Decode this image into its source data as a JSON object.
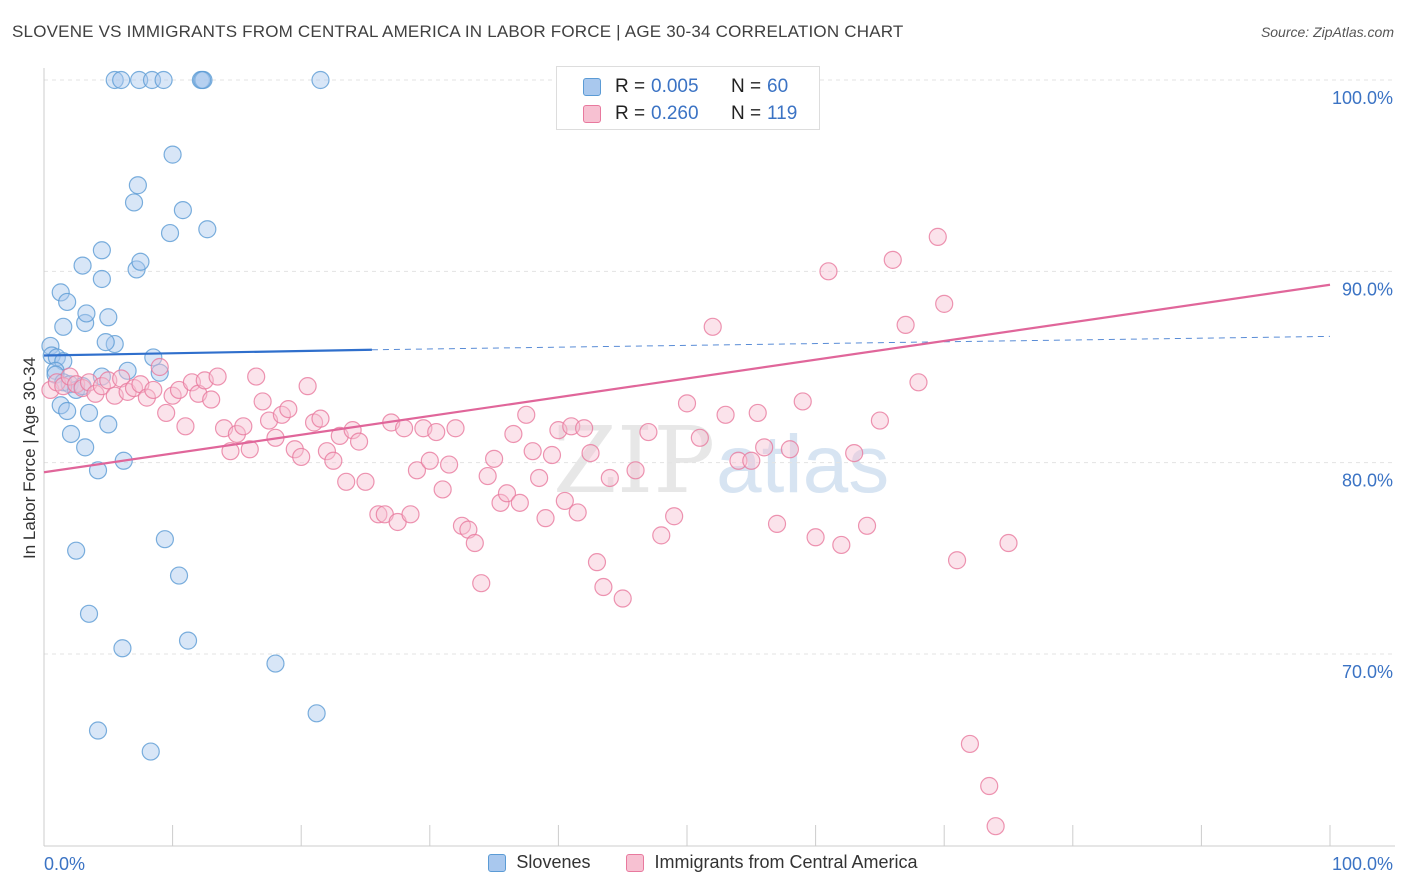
{
  "title": "SLOVENE VS IMMIGRANTS FROM CENTRAL AMERICA IN LABOR FORCE | AGE 30-34 CORRELATION CHART",
  "source": "Source: ZipAtlas.com",
  "watermark": "ZIPatlas",
  "colors": {
    "blue": "#5b9bd5",
    "blue_fill": "#a9c8ee",
    "blue_line": "#2f6fcc",
    "pink": "#e8799e",
    "pink_fill": "#f7c1d2",
    "pink_line": "#e0669a",
    "axis_label": "#3b73c4"
  },
  "legend_box": [
    {
      "r_label": "R =",
      "r_value": "0.005",
      "n_label": "N =",
      "n_value": "60",
      "color": "#a9c8ee"
    },
    {
      "r_label": "R =",
      "r_value": "0.260",
      "n_label": "N =",
      "n_value": "119",
      "color": "#f7c1d2"
    }
  ],
  "legend_bottom": [
    {
      "label": "Slovenes",
      "color": "#a9c8ee"
    },
    {
      "label": "Immigrants from Central America",
      "color": "#f7c1d2"
    }
  ],
  "chart_data": {
    "type": "scatter",
    "xlabel": "",
    "ylabel": "In Labor Force | Age 30-34",
    "xlim": [
      0,
      100
    ],
    "ylim": [
      60,
      100
    ],
    "x_tick_labels": [
      "0.0%",
      "100.0%"
    ],
    "y_ticks": [
      70,
      80,
      90,
      100
    ],
    "y_tick_labels": [
      "70.0%",
      "80.0%",
      "90.0%",
      "100.0%"
    ],
    "grid": "horizontal dashed",
    "series": [
      {
        "name": "Slovenes",
        "color": "#5b9bd5",
        "trend": {
          "x0": 0,
          "y0": 85.6,
          "x1": 25.5,
          "y1": 85.9,
          "x_dash_end": 100,
          "y_dash_end": 86.6
        },
        "points": [
          [
            0.5,
            86.1
          ],
          [
            0.6,
            85.6
          ],
          [
            1.0,
            85.5
          ],
          [
            1.5,
            85.3
          ],
          [
            0.9,
            84.8
          ],
          [
            0.9,
            84.6
          ],
          [
            1.5,
            84.2
          ],
          [
            2.0,
            84.1
          ],
          [
            2.5,
            83.8
          ],
          [
            3.0,
            84.0
          ],
          [
            1.3,
            83.0
          ],
          [
            1.8,
            82.7
          ],
          [
            3.5,
            82.6
          ],
          [
            2.1,
            81.5
          ],
          [
            3.2,
            80.8
          ],
          [
            4.2,
            79.6
          ],
          [
            6.2,
            80.1
          ],
          [
            5.0,
            82.0
          ],
          [
            4.5,
            84.5
          ],
          [
            6.5,
            84.8
          ],
          [
            8.5,
            85.5
          ],
          [
            9.0,
            84.7
          ],
          [
            1.5,
            87.1
          ],
          [
            1.3,
            88.9
          ],
          [
            1.8,
            88.4
          ],
          [
            3.2,
            87.3
          ],
          [
            3.3,
            87.8
          ],
          [
            5.0,
            87.6
          ],
          [
            5.5,
            86.2
          ],
          [
            4.8,
            86.3
          ],
          [
            3.0,
            90.3
          ],
          [
            4.5,
            89.6
          ],
          [
            4.5,
            91.1
          ],
          [
            7.2,
            90.1
          ],
          [
            7.5,
            90.5
          ],
          [
            7.0,
            93.6
          ],
          [
            7.3,
            94.5
          ],
          [
            9.8,
            92.0
          ],
          [
            10.8,
            93.2
          ],
          [
            12.7,
            92.2
          ],
          [
            10.0,
            96.1
          ],
          [
            5.5,
            100
          ],
          [
            6.0,
            100
          ],
          [
            7.4,
            100
          ],
          [
            8.4,
            100
          ],
          [
            12.2,
            100
          ],
          [
            12.4,
            100
          ],
          [
            21.5,
            100
          ],
          [
            12.3,
            100
          ],
          [
            9.3,
            100
          ],
          [
            2.5,
            75.4
          ],
          [
            3.5,
            72.1
          ],
          [
            6.1,
            70.3
          ],
          [
            9.4,
            76.0
          ],
          [
            10.5,
            74.1
          ],
          [
            11.2,
            70.7
          ],
          [
            18.0,
            69.5
          ],
          [
            21.2,
            66.9
          ],
          [
            4.2,
            66.0
          ],
          [
            8.3,
            64.9
          ]
        ]
      },
      {
        "name": "Immigrants from Central America",
        "color": "#e8799e",
        "trend": {
          "x0": 0,
          "y0": 79.5,
          "x1": 100,
          "y1": 89.3
        },
        "points": [
          [
            0.5,
            83.8
          ],
          [
            1.0,
            84.2
          ],
          [
            1.5,
            84.0
          ],
          [
            2.0,
            84.5
          ],
          [
            2.5,
            84.1
          ],
          [
            3.0,
            83.9
          ],
          [
            3.5,
            84.2
          ],
          [
            4.0,
            83.6
          ],
          [
            4.5,
            84.0
          ],
          [
            5.0,
            84.3
          ],
          [
            5.5,
            83.5
          ],
          [
            6.0,
            84.4
          ],
          [
            6.5,
            83.7
          ],
          [
            7.0,
            83.9
          ],
          [
            7.5,
            84.1
          ],
          [
            8.0,
            83.4
          ],
          [
            8.5,
            83.8
          ],
          [
            9.0,
            85.0
          ],
          [
            9.5,
            82.6
          ],
          [
            10.0,
            83.5
          ],
          [
            10.5,
            83.8
          ],
          [
            11.0,
            81.9
          ],
          [
            11.5,
            84.2
          ],
          [
            12.0,
            83.6
          ],
          [
            12.5,
            84.3
          ],
          [
            13.0,
            83.3
          ],
          [
            13.5,
            84.5
          ],
          [
            14.0,
            81.8
          ],
          [
            14.5,
            80.6
          ],
          [
            15.0,
            81.5
          ],
          [
            15.5,
            81.9
          ],
          [
            16.0,
            80.7
          ],
          [
            16.5,
            84.5
          ],
          [
            17.0,
            83.2
          ],
          [
            17.5,
            82.2
          ],
          [
            18.0,
            81.3
          ],
          [
            18.5,
            82.5
          ],
          [
            19.0,
            82.8
          ],
          [
            19.5,
            80.7
          ],
          [
            20.0,
            80.3
          ],
          [
            20.5,
            84.0
          ],
          [
            21.0,
            82.1
          ],
          [
            21.5,
            82.3
          ],
          [
            22.0,
            80.6
          ],
          [
            22.5,
            80.1
          ],
          [
            23.0,
            81.4
          ],
          [
            23.5,
            79.0
          ],
          [
            24.0,
            81.7
          ],
          [
            24.5,
            81.1
          ],
          [
            25.0,
            79.0
          ],
          [
            26.0,
            77.3
          ],
          [
            26.5,
            77.3
          ],
          [
            27.0,
            82.1
          ],
          [
            27.5,
            76.9
          ],
          [
            28.0,
            81.8
          ],
          [
            28.5,
            77.3
          ],
          [
            29.0,
            79.6
          ],
          [
            29.5,
            81.8
          ],
          [
            30.0,
            80.1
          ],
          [
            30.5,
            81.6
          ],
          [
            31.0,
            78.6
          ],
          [
            31.5,
            79.9
          ],
          [
            32.0,
            81.8
          ],
          [
            32.5,
            76.7
          ],
          [
            33.0,
            76.5
          ],
          [
            33.5,
            75.8
          ],
          [
            34.0,
            73.7
          ],
          [
            34.5,
            79.3
          ],
          [
            35.0,
            80.2
          ],
          [
            35.5,
            77.9
          ],
          [
            36.0,
            78.4
          ],
          [
            36.5,
            81.5
          ],
          [
            37.0,
            77.9
          ],
          [
            37.5,
            82.5
          ],
          [
            38.0,
            80.6
          ],
          [
            38.5,
            79.2
          ],
          [
            39.0,
            77.1
          ],
          [
            39.5,
            80.4
          ],
          [
            40.0,
            81.7
          ],
          [
            40.5,
            78.0
          ],
          [
            41.0,
            81.9
          ],
          [
            41.5,
            77.4
          ],
          [
            42.0,
            81.8
          ],
          [
            42.5,
            80.5
          ],
          [
            43.0,
            74.8
          ],
          [
            43.5,
            73.5
          ],
          [
            44.0,
            79.2
          ],
          [
            45.0,
            72.9
          ],
          [
            46.0,
            79.6
          ],
          [
            47.0,
            81.6
          ],
          [
            48.0,
            76.2
          ],
          [
            49.0,
            77.2
          ],
          [
            50.0,
            83.1
          ],
          [
            51.0,
            81.3
          ],
          [
            52.0,
            87.1
          ],
          [
            53.0,
            82.5
          ],
          [
            54.0,
            80.1
          ],
          [
            55.0,
            80.1
          ],
          [
            55.5,
            82.6
          ],
          [
            56.0,
            80.8
          ],
          [
            57.0,
            76.8
          ],
          [
            58.0,
            80.7
          ],
          [
            59.0,
            83.2
          ],
          [
            60.0,
            76.1
          ],
          [
            61.0,
            90.0
          ],
          [
            62.0,
            75.7
          ],
          [
            63.0,
            80.5
          ],
          [
            64.0,
            76.7
          ],
          [
            65.0,
            82.2
          ],
          [
            66.0,
            90.6
          ],
          [
            67.0,
            87.2
          ],
          [
            68.0,
            84.2
          ],
          [
            69.5,
            91.8
          ],
          [
            70.0,
            88.3
          ],
          [
            71.0,
            74.9
          ],
          [
            72.0,
            65.3
          ],
          [
            73.5,
            63.1
          ],
          [
            74.0,
            61.0
          ],
          [
            75.0,
            75.8
          ]
        ]
      }
    ]
  }
}
